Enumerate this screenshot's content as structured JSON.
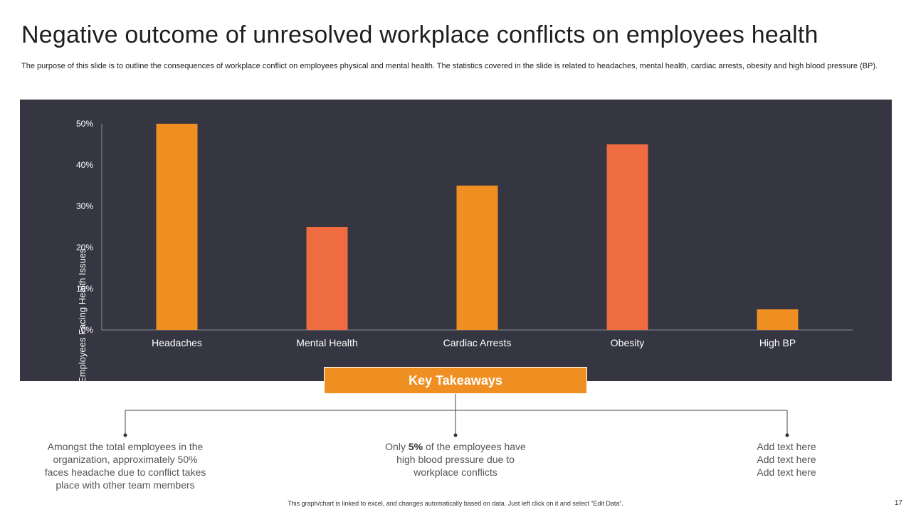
{
  "slide": {
    "title": "Negative outcome of unresolved workplace conflicts on employees health",
    "subtitle": "The purpose of this slide is to outline the consequences of workplace conflict on employees physical and mental health. The statistics covered in the slide is related to headaches, mental health, cardiac arrests, obesity and high blood pressure (BP).",
    "footer": "This graph/chart is linked to excel, and changes automatically based on data. Just left click on it and select “Edit Data”.",
    "page_number": "17"
  },
  "chart_data": {
    "type": "bar",
    "title": "",
    "xlabel": "",
    "ylabel": "% of Employees Facing Health Issues",
    "categories": [
      "Headaches",
      "Mental Health",
      "Cardiac Arrests",
      "Obesity",
      "High BP"
    ],
    "values": [
      50,
      25,
      35,
      45,
      5
    ],
    "unit": "%",
    "ylim": [
      0,
      50
    ],
    "yticks": [
      0,
      10,
      20,
      30,
      40,
      50
    ],
    "ytick_labels": [
      "0%",
      "10%",
      "20%",
      "30%",
      "40%",
      "50%"
    ],
    "bar_colors": [
      "#ef8f22",
      "#ef6b40",
      "#ef8f22",
      "#ef6b40",
      "#ef8f22"
    ],
    "grid": false,
    "legend": "none"
  },
  "key_takeaways": {
    "title": "Key Takeaways",
    "items": [
      {
        "text": "Amongst the total employees in the organization, approximately 50% faces headache due to conflict takes place with other team members"
      },
      {
        "pre": "Only ",
        "bold": "5%",
        "post": " of the employees have high blood pressure due to workplace conflicts"
      },
      {
        "lines": [
          "Add text here",
          "Add text here",
          "Add text here"
        ]
      }
    ]
  },
  "colors": {
    "panel_bg": "#353641",
    "accent_orange": "#ef8f22",
    "accent_coral": "#ef6b40",
    "text_dark": "#1e1e1e"
  }
}
